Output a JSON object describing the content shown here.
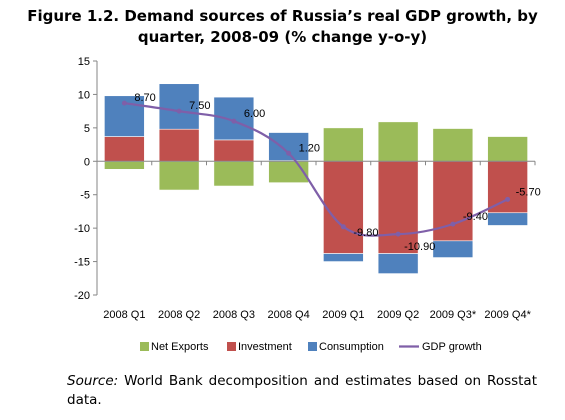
{
  "title": {
    "line1": "Figure 1.2. Demand sources of Russia’s real GDP growth, by",
    "line2": "quarter, 2008-09 (% change y-o-y)"
  },
  "source": {
    "label": "Source:",
    "text": " World Bank decomposition and estimates based on Rosstat data."
  },
  "chart_data": {
    "type": "bar",
    "stacked": true,
    "categories": [
      "2008 Q1",
      "2008 Q2",
      "2008 Q3",
      "2008 Q4",
      "2009 Q1",
      "2009 Q2",
      "2009 Q3*",
      "2009 Q4*"
    ],
    "series": [
      {
        "name": "Net Exports",
        "kind": "bar",
        "color": "#9bbb59",
        "values": [
          -1.2,
          -4.3,
          -3.7,
          -3.2,
          5.0,
          5.9,
          4.9,
          3.7
        ]
      },
      {
        "name": "Investment",
        "kind": "bar",
        "color": "#c0504d",
        "values": [
          3.7,
          4.8,
          3.2,
          0.1,
          -13.8,
          -13.8,
          -11.9,
          -7.7
        ]
      },
      {
        "name": "Consumption",
        "kind": "bar",
        "color": "#4f81bd",
        "values": [
          6.1,
          6.8,
          6.4,
          4.2,
          -1.2,
          -3.0,
          -2.5,
          -1.9
        ]
      },
      {
        "name": "GDP growth",
        "kind": "line",
        "color": "#7f5fa8",
        "values": [
          8.7,
          7.5,
          6.0,
          1.2,
          -9.8,
          -10.9,
          -9.4,
          -5.7
        ],
        "labels": [
          "8.70",
          "7.50",
          "6.00",
          "1.20",
          "-9.80",
          "-10.90",
          "-9.40",
          "-5.70"
        ]
      }
    ],
    "ylim": [
      -20,
      15
    ],
    "yticks": [
      15,
      10,
      5,
      0,
      -5,
      -10,
      -15,
      -20
    ],
    "grid": false,
    "legend_position": "bottom"
  }
}
